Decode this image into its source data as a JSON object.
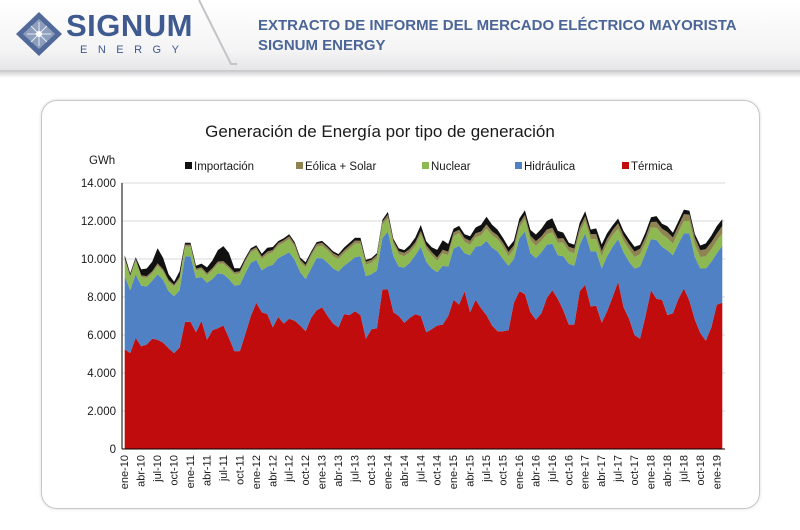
{
  "header": {
    "logo_name": "SIGNUM",
    "logo_sub": "ENERGY",
    "title_line1": "EXTRACTO DE INFORME DEL MERCADO ELÉCTRICO MAYORISTA",
    "title_line2": "SIGNUM ENERGY"
  },
  "colors": {
    "brand": "#3f5a8f",
    "importacion": "#111111",
    "eolica_solar": "#8f8352",
    "nuclear": "#8db852",
    "hidraulica": "#4f81c4",
    "termica": "#c00c0c"
  },
  "chart_data": {
    "type": "area",
    "stacked": true,
    "title": "Generación de Energía por tipo de generación",
    "ylabel": "GWh",
    "ylim": [
      0,
      14000
    ],
    "yticks": [
      "0",
      "2.000",
      "4.000",
      "6.000",
      "8.000",
      "10.000",
      "12.000",
      "14.000"
    ],
    "ytick_values": [
      0,
      2000,
      4000,
      6000,
      8000,
      10000,
      12000,
      14000
    ],
    "legend_position": "top",
    "grid": "horizontal",
    "xtick_labels": [
      "ene-10",
      "abr-10",
      "jul-10",
      "oct-10",
      "ene-11",
      "abr-11",
      "jul-11",
      "oct-11",
      "ene-12",
      "abr-12",
      "jul-12",
      "oct-12",
      "ene-13",
      "abr-13",
      "jul-13",
      "oct-13",
      "ene-14",
      "abr-14",
      "jul-14",
      "oct-14",
      "ene-15",
      "abr-15",
      "jul-15",
      "oct-15",
      "ene-16",
      "abr-16",
      "jul-16",
      "oct-16",
      "ene-17",
      "abr-17",
      "jul-17",
      "oct-17",
      "ene-18",
      "abr-18",
      "jul-18",
      "oct-18",
      "ene-19"
    ],
    "x": [
      "ene-10",
      "feb-10",
      "mar-10",
      "abr-10",
      "may-10",
      "jun-10",
      "jul-10",
      "ago-10",
      "sep-10",
      "oct-10",
      "nov-10",
      "dic-10",
      "ene-11",
      "feb-11",
      "mar-11",
      "abr-11",
      "may-11",
      "jun-11",
      "jul-11",
      "ago-11",
      "sep-11",
      "oct-11",
      "nov-11",
      "dic-11",
      "ene-12",
      "feb-12",
      "mar-12",
      "abr-12",
      "may-12",
      "jun-12",
      "jul-12",
      "ago-12",
      "sep-12",
      "oct-12",
      "nov-12",
      "dic-12",
      "ene-13",
      "feb-13",
      "mar-13",
      "abr-13",
      "may-13",
      "jun-13",
      "jul-13",
      "ago-13",
      "sep-13",
      "oct-13",
      "nov-13",
      "dic-13",
      "ene-14",
      "feb-14",
      "mar-14",
      "abr-14",
      "may-14",
      "jun-14",
      "jul-14",
      "ago-14",
      "sep-14",
      "oct-14",
      "nov-14",
      "dic-14",
      "ene-15",
      "feb-15",
      "mar-15",
      "abr-15",
      "may-15",
      "jun-15",
      "jul-15",
      "ago-15",
      "sep-15",
      "oct-15",
      "nov-15",
      "dic-15",
      "ene-16",
      "feb-16",
      "mar-16",
      "abr-16",
      "may-16",
      "jun-16",
      "jul-16",
      "ago-16",
      "sep-16",
      "oct-16",
      "nov-16",
      "dic-16",
      "ene-17",
      "feb-17",
      "mar-17",
      "abr-17",
      "may-17",
      "jun-17",
      "jul-17",
      "ago-17",
      "sep-17",
      "oct-17",
      "nov-17",
      "dic-17",
      "ene-18",
      "feb-18",
      "mar-18",
      "abr-18",
      "may-18",
      "jun-18",
      "jul-18",
      "ago-18",
      "sep-18",
      "oct-18",
      "nov-18",
      "dic-18",
      "ene-19",
      "feb-19"
    ],
    "series": [
      {
        "name": "Térmica",
        "key": "termica",
        "values": [
          5250,
          5050,
          5850,
          5400,
          5500,
          5800,
          5750,
          5600,
          5300,
          5050,
          5350,
          6700,
          6700,
          6150,
          6750,
          5750,
          6250,
          6350,
          6500,
          5850,
          5150,
          5150,
          6050,
          7000,
          7700,
          7200,
          7100,
          6400,
          6950,
          6600,
          6850,
          6750,
          6500,
          6200,
          6900,
          7300,
          7450,
          7000,
          6600,
          6400,
          7100,
          7050,
          7250,
          7050,
          5800,
          6300,
          6350,
          8400,
          8400,
          7200,
          7000,
          6650,
          6900,
          7100,
          7000,
          6150,
          6300,
          6500,
          6550,
          7000,
          7850,
          7600,
          8300,
          7200,
          7850,
          7400,
          7050,
          6500,
          6200,
          6200,
          6250,
          7700,
          8300,
          8150,
          7200,
          6800,
          7150,
          7950,
          8350,
          7900,
          7300,
          6550,
          6550,
          8300,
          8650,
          7500,
          7550,
          6650,
          7250,
          8000,
          8800,
          7450,
          6850,
          6000,
          5800,
          7000,
          8350,
          7900,
          7850,
          7050,
          7150,
          7900,
          8450,
          7800,
          6800,
          6100,
          5700,
          6400,
          7600,
          7700
        ]
      },
      {
        "name": "Hidráulica",
        "key": "hidraulica",
        "values": [
          3850,
          3300,
          3350,
          3200,
          3050,
          3050,
          3450,
          3300,
          3000,
          3000,
          3000,
          3450,
          3450,
          2850,
          2300,
          3000,
          2700,
          2900,
          2700,
          3100,
          3450,
          3500,
          3200,
          2800,
          2250,
          2200,
          2500,
          3300,
          3100,
          3600,
          3500,
          3200,
          2800,
          2750,
          2600,
          2750,
          2600,
          2800,
          2900,
          2950,
          2550,
          2800,
          2850,
          3100,
          3300,
          2900,
          3050,
          2700,
          3050,
          2950,
          2600,
          2900,
          2900,
          3100,
          3650,
          3700,
          3200,
          2800,
          3100,
          2600,
          2700,
          3100,
          2000,
          3000,
          2800,
          3300,
          3900,
          4100,
          4200,
          3800,
          3400,
          2300,
          2800,
          3300,
          3100,
          3250,
          3200,
          2800,
          2450,
          2300,
          2850,
          3200,
          3100,
          2450,
          2700,
          2900,
          2850,
          2850,
          2900,
          2650,
          2250,
          2900,
          3000,
          3500,
          3800,
          3300,
          2700,
          3100,
          2800,
          3400,
          3050,
          2900,
          2900,
          3550,
          3300,
          3400,
          3800,
          3450,
          2700,
          3000
        ]
      },
      {
        "name": "Nuclear",
        "key": "nuclear",
        "values": [
          850,
          700,
          700,
          450,
          450,
          400,
          450,
          450,
          500,
          500,
          600,
          500,
          500,
          400,
          400,
          400,
          450,
          500,
          550,
          550,
          600,
          600,
          600,
          550,
          550,
          600,
          650,
          650,
          650,
          650,
          700,
          700,
          550,
          600,
          650,
          600,
          650,
          650,
          650,
          650,
          650,
          700,
          700,
          650,
          600,
          600,
          650,
          700,
          700,
          650,
          650,
          600,
          550,
          500,
          650,
          700,
          700,
          600,
          650,
          600,
          650,
          650,
          600,
          550,
          500,
          550,
          650,
          650,
          650,
          650,
          500,
          500,
          550,
          650,
          700,
          650,
          600,
          550,
          600,
          650,
          700,
          650,
          650,
          650,
          650,
          650,
          650,
          650,
          650,
          600,
          550,
          600,
          650,
          600,
          650,
          550,
          600,
          650,
          650,
          650,
          600,
          600,
          650,
          650,
          650,
          600,
          650,
          650,
          650,
          650
        ]
      },
      {
        "name": "Eólica + Solar",
        "key": "eolica_solar",
        "values": [
          100,
          100,
          110,
          100,
          100,
          110,
          120,
          110,
          100,
          100,
          110,
          110,
          110,
          100,
          110,
          110,
          120,
          120,
          130,
          120,
          110,
          110,
          120,
          120,
          120,
          130,
          140,
          130,
          140,
          140,
          150,
          140,
          130,
          130,
          140,
          140,
          150,
          150,
          160,
          160,
          150,
          160,
          170,
          160,
          150,
          150,
          160,
          170,
          180,
          170,
          160,
          170,
          180,
          180,
          190,
          180,
          170,
          180,
          190,
          190,
          200,
          190,
          200,
          200,
          210,
          200,
          220,
          210,
          200,
          210,
          220,
          220,
          230,
          220,
          230,
          240,
          240,
          250,
          240,
          230,
          240,
          250,
          250,
          260,
          260,
          250,
          260,
          270,
          260,
          270,
          280,
          270,
          280,
          290,
          290,
          300,
          300,
          310,
          300,
          320,
          330,
          340,
          350,
          340,
          360,
          360,
          370,
          380,
          380,
          390
        ]
      },
      {
        "name": "Importación",
        "key": "importacion",
        "values": [
          150,
          100,
          80,
          300,
          400,
          500,
          800,
          600,
          300,
          150,
          300,
          100,
          100,
          150,
          200,
          300,
          400,
          600,
          800,
          700,
          200,
          150,
          100,
          100,
          100,
          150,
          200,
          150,
          100,
          100,
          100,
          100,
          100,
          150,
          100,
          100,
          100,
          100,
          100,
          100,
          150,
          150,
          150,
          150,
          100,
          100,
          100,
          100,
          150,
          100,
          150,
          150,
          200,
          250,
          300,
          200,
          250,
          400,
          500,
          400,
          200,
          200,
          200,
          250,
          300,
          350,
          400,
          350,
          300,
          250,
          250,
          250,
          250,
          250,
          300,
          350,
          400,
          450,
          500,
          400,
          300,
          200,
          200,
          250,
          250,
          250,
          300,
          350,
          300,
          250,
          250,
          250,
          250,
          250,
          200,
          250,
          250,
          300,
          250,
          300,
          250,
          250,
          250,
          200,
          200,
          250,
          300,
          350,
          400,
          350
        ]
      }
    ]
  }
}
